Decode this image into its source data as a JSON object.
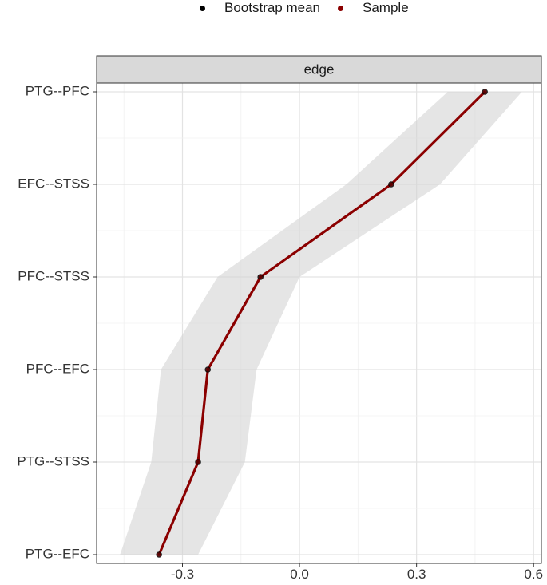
{
  "legend": {
    "items": [
      {
        "label": "Bootstrap mean",
        "color": "#000000"
      },
      {
        "label": "Sample",
        "color": "#8b0000"
      }
    ]
  },
  "panel": {
    "strip_label": "edge",
    "strip_fill": "#d9d9d9"
  },
  "chart_data": {
    "type": "line",
    "facet": "edge",
    "categories": [
      "PTG--EFC",
      "PTG--STSS",
      "PFC--EFC",
      "PFC--STSS",
      "EFC--STSS",
      "PTG--PFC"
    ],
    "xlim": [
      -0.52,
      0.62
    ],
    "x_ticks": [
      -0.3,
      0.0,
      0.3,
      0.6
    ],
    "x_tick_labels": [
      "-0.3",
      "0.0",
      "0.3",
      "0.6"
    ],
    "grid": true,
    "legend_position": "top",
    "series": [
      {
        "name": "Bootstrap mean",
        "color": "#000000",
        "values": [
          -0.36,
          -0.26,
          -0.235,
          -0.1,
          0.235,
          0.475
        ]
      },
      {
        "name": "Sample",
        "color": "#8b0000",
        "values": [
          -0.36,
          -0.26,
          -0.235,
          -0.1,
          0.235,
          0.475
        ]
      }
    ],
    "band": {
      "color": "#d3d3d3",
      "lower": [
        -0.46,
        -0.38,
        -0.355,
        -0.21,
        0.12,
        0.38
      ],
      "upper": [
        -0.26,
        -0.14,
        -0.11,
        0.0,
        0.36,
        0.57
      ]
    }
  }
}
